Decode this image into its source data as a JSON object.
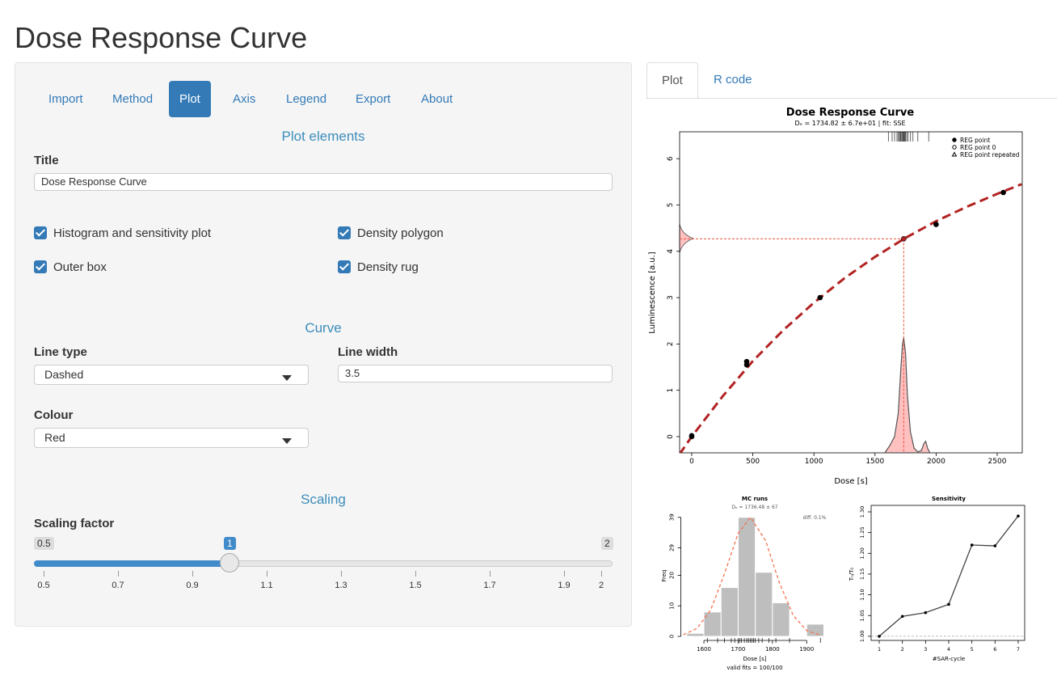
{
  "page_title": "Dose Response Curve",
  "settings_tabs": {
    "items": [
      "Import",
      "Method",
      "Plot",
      "Axis",
      "Legend",
      "Export",
      "About"
    ],
    "active": 2
  },
  "plot_elements": {
    "heading": "Plot elements",
    "title_label": "Title",
    "title_value": "Dose Response Curve",
    "checkboxes": [
      {
        "label": "Histogram and sensitivity plot",
        "checked": true
      },
      {
        "label": "Density polygon",
        "checked": true
      },
      {
        "label": "Outer box",
        "checked": true
      },
      {
        "label": "Density rug",
        "checked": true
      }
    ]
  },
  "curve": {
    "heading": "Curve",
    "line_type_label": "Line type",
    "line_type_value": "Dashed",
    "line_width_label": "Line width",
    "line_width_value": "3.5",
    "colour_label": "Colour",
    "colour_value": "Red"
  },
  "scaling": {
    "heading": "Scaling",
    "label": "Scaling factor",
    "min": 0.5,
    "max": 2,
    "value": 1,
    "ticks": [
      0.5,
      0.7,
      0.9,
      1.1,
      1.3,
      1.5,
      1.7,
      1.9,
      2
    ]
  },
  "output_tabs": {
    "items": [
      "Plot",
      "R code"
    ],
    "active": 0
  },
  "chart_data": [
    {
      "type": "scatter",
      "title": "Dose Response Curve",
      "subtitle": "Dₑ = 1734.82 ± 6.7e+01  |  fit: SSE",
      "xlabel": "Dose [s]",
      "ylabel": "Luminescence [a.u.]",
      "xlim": [
        -99,
        2705
      ],
      "ylim": [
        -0.35,
        6.58
      ],
      "xticks": [
        0,
        500,
        1000,
        1500,
        2000,
        2500
      ],
      "yticks": [
        0,
        1,
        2,
        3,
        4,
        5,
        6
      ],
      "legend": "top-right",
      "series": [
        {
          "name": "REG point",
          "marker": "filled",
          "color": "#000000",
          "x": [
            0,
            450,
            450,
            1050,
            2000,
            2550
          ],
          "y": [
            0.02,
            1.55,
            1.62,
            3.0,
            4.58,
            5.27
          ]
        },
        {
          "name": "REG point 0",
          "marker": "open",
          "color": "#000000",
          "x": [
            0
          ],
          "y": [
            0
          ]
        },
        {
          "name": "REG point repeated",
          "marker": "triangle",
          "color": "#000000",
          "x": [],
          "y": []
        }
      ],
      "de_point": {
        "x": 1734.82,
        "y": 4.27,
        "color": "#b22222",
        "line_color": "#e8533f"
      },
      "fit": {
        "color": "#b22222",
        "x": [
          -100,
          0,
          250,
          500,
          750,
          1000,
          1250,
          1500,
          1750,
          2000,
          2250,
          2500,
          2700
        ],
        "y": [
          -0.38,
          0,
          0.86,
          1.63,
          2.3,
          2.89,
          3.42,
          3.88,
          4.29,
          4.65,
          4.96,
          5.24,
          5.45
        ]
      },
      "density": {
        "color": "#ffc0c0",
        "x": [
          1580,
          1620,
          1660,
          1690,
          1710,
          1725,
          1735,
          1750,
          1765,
          1790,
          1820,
          1850,
          1880,
          1900,
          1915,
          1930,
          1950
        ],
        "y": [
          -0.35,
          -0.2,
          0,
          0.5,
          1.4,
          2.0,
          2.13,
          1.8,
          0.9,
          0.1,
          -0.25,
          -0.33,
          -0.3,
          -0.15,
          -0.1,
          -0.25,
          -0.35
        ]
      },
      "rug": [
        1610,
        1640,
        1660,
        1680,
        1690,
        1700,
        1705,
        1710,
        1718,
        1725,
        1730,
        1735,
        1740,
        1745,
        1750,
        1760,
        1770,
        1790,
        1810,
        1850,
        1940
      ]
    },
    {
      "type": "histogram",
      "title": "MC runs",
      "subtitle": "Dₑ = 1736.48 ± 67",
      "annotation": "diff. 0.1%",
      "xlabel": "Dose [s]",
      "footnote": "valid fits = 100/100",
      "ylabel": "Freq",
      "bins": [
        1550,
        1600,
        1650,
        1700,
        1750,
        1800,
        1850,
        1900,
        1950
      ],
      "counts": [
        1,
        8,
        16,
        39,
        21,
        11,
        0,
        4
      ],
      "color": "#bebebe",
      "xlim": [
        1540,
        1960
      ],
      "ylim": [
        0,
        40
      ],
      "xticks": [
        1600,
        1700,
        1800,
        1900
      ],
      "yticks": [
        0,
        10,
        20,
        29,
        39
      ],
      "normal_curve": {
        "color": "#f4724f",
        "x": [
          1540,
          1580,
          1620,
          1660,
          1700,
          1736,
          1780,
          1820,
          1860,
          1900,
          1940
        ],
        "y": [
          0.54,
          2.6,
          8.7,
          20.5,
          33.8,
          39,
          31.4,
          17.7,
          7.0,
          1.9,
          0.4
        ]
      }
    },
    {
      "type": "line",
      "title": "Sensitivity",
      "xlabel": "#SAR-cycle",
      "ylabel": "Tₙ/T₀",
      "x": [
        1,
        2,
        3,
        4,
        5,
        6,
        7
      ],
      "values": [
        1.0,
        1.048,
        1.057,
        1.077,
        1.22,
        1.218,
        1.29
      ],
      "xlim": [
        0.65,
        7.28
      ],
      "ylim": [
        0.99,
        1.3156
      ],
      "xticks": [
        1,
        2,
        3,
        4,
        5,
        6,
        7
      ],
      "yticks": [
        {
          "value": 1,
          "label": "1.00"
        },
        {
          "value": 1.05,
          "label": "1.05"
        },
        {
          "value": 1.1,
          "label": "1.10"
        },
        {
          "value": 1.15,
          "label": "1.15"
        },
        {
          "value": 1.2,
          "label": "1.20"
        },
        {
          "value": 1.25,
          "label": "1.25"
        },
        {
          "value": 1.3,
          "label": "1.30"
        }
      ],
      "reference_line": 1
    }
  ]
}
